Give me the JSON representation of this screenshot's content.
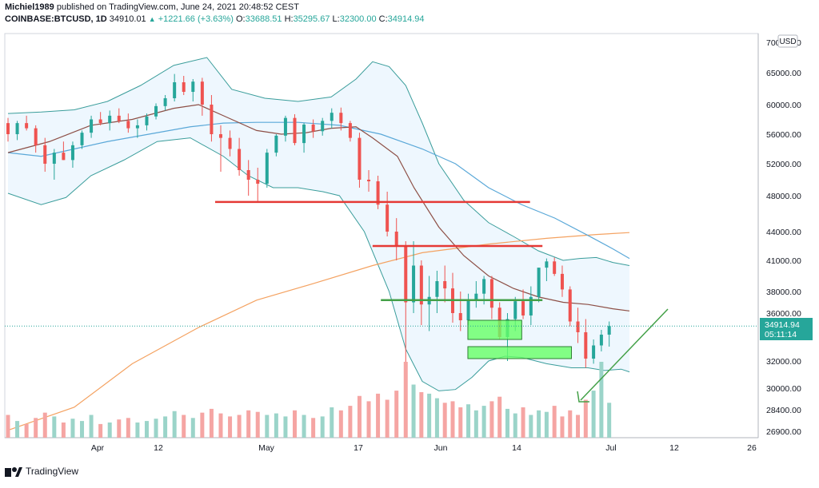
{
  "header": {
    "author": "Michiel1989",
    "published_text": "published on TradingView.com, June 24, 2021 20:48:52 CEST",
    "symbol": "COINBASE:BTCUSD, 1D",
    "last_value": "34910.01",
    "change": "+1221.66 (+3.63%)",
    "o_label": "O:",
    "o_value": "33688.51",
    "h_label": "H:",
    "h_value": "35295.67",
    "l_label": "L:",
    "l_value": "32300.00",
    "c_label": "C:",
    "c_value": "34914.94"
  },
  "footer": {
    "brand": "TradingView"
  },
  "colors": {
    "up": "#26a69a",
    "down": "#ef5350",
    "bb_fill": "#e3f2fd",
    "bb_line": "#3a9d9b",
    "ma_short": "#8d4f46",
    "ma_mid": "#5aa8d8",
    "ma_long": "#f4a261",
    "red_line": "#e53935",
    "green_line": "#43a047",
    "box": "#66ff66"
  },
  "chart_data": {
    "type": "candlestick",
    "y_axis_unit": "USD",
    "y_ticks": [
      "70000.00",
      "65000.00",
      "60000.00",
      "56000.00",
      "52000.00",
      "48000.00",
      "44000.00",
      "41000.00",
      "38000.00",
      "36000.00",
      "34914.94",
      "32000.00",
      "30000.00",
      "28400.00",
      "26900.00"
    ],
    "price_label": "34914.94",
    "price_label_time": "05:11:14",
    "x_ticks": [
      "Apr",
      "12",
      "May",
      "17",
      "Jun",
      "14",
      "Jul",
      "12",
      "26"
    ],
    "resistance_lines": [
      47300,
      42500
    ],
    "support_lines": [
      37200
    ],
    "current_price": 34914.94
  }
}
